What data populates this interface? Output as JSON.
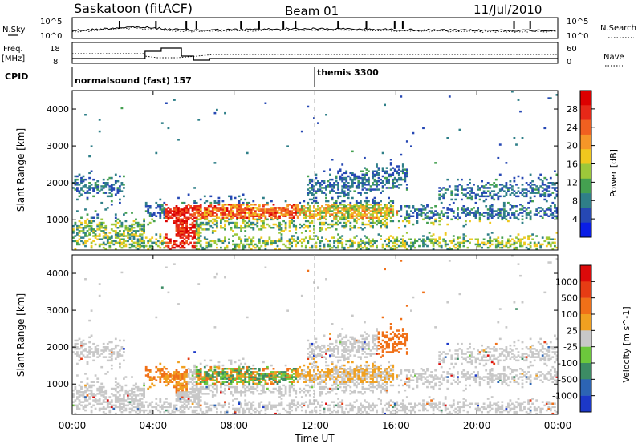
{
  "header": {
    "station": "Saskatoon (fitACF)",
    "beam": "Beam 01",
    "date": "11/Jul/2010"
  },
  "strip_labels": {
    "n_sky": "N.Sky",
    "n_search": "N.Search",
    "freq": "Freq.",
    "freq_unit": "[MHz]",
    "nave": "Nave",
    "cpid": "CPID",
    "nsky_tick_top": "10^5",
    "nsky_tick_bottom": "10^0",
    "nsearch_tick_top": "10^5",
    "nsearch_tick_bottom": "10^0",
    "freq_tick_top": "18",
    "freq_tick_bottom": "8",
    "nave_tick_top": "60",
    "nave_tick_bottom": "0"
  },
  "cpid_segments": [
    {
      "label": "normalsound (fast) 157",
      "start_hour": 0
    },
    {
      "label": "themis 3300",
      "start_hour": 12
    }
  ],
  "chart_data": [
    {
      "type": "heatmap",
      "name": "power",
      "ylabel": "Slant Range [km]",
      "colorbar_label": "Power [dB]",
      "colorbar_ticks": [
        "4",
        "8",
        "12",
        "16",
        "20",
        "24",
        "28"
      ],
      "colorbar_colors": [
        "#0a1ee6",
        "#2648b4",
        "#2f7f88",
        "#44a050",
        "#9cc83a",
        "#f0c81e",
        "#f59628",
        "#f06020",
        "#e62818",
        "#dc0000"
      ],
      "ylim": [
        180,
        4500
      ],
      "yticks": [
        "1000",
        "2000",
        "3000",
        "4000"
      ]
    },
    {
      "type": "heatmap",
      "name": "velocity",
      "ylabel": "Slant Range [km]",
      "colorbar_label": "Velocity [m s^-1]",
      "colorbar_ticks": [
        "1000",
        "500",
        "100",
        "25",
        "-25",
        "-100",
        "-500",
        "-1000"
      ],
      "colorbar_colors": [
        "#1c38c8",
        "#2c64b4",
        "#3c8c64",
        "#6cc83c",
        "#c8c8c8",
        "#f0a020",
        "#f07018",
        "#e63c14",
        "#dc0a0a"
      ],
      "ylim": [
        180,
        4500
      ],
      "yticks": [
        "1000",
        "2000",
        "3000",
        "4000"
      ]
    }
  ],
  "x_axis": {
    "xlabel": "Time UT",
    "xlim_hours": [
      0,
      24
    ],
    "ticks": [
      "00:00",
      "04:00",
      "08:00",
      "12:00",
      "16:00",
      "20:00",
      "00:00"
    ]
  }
}
